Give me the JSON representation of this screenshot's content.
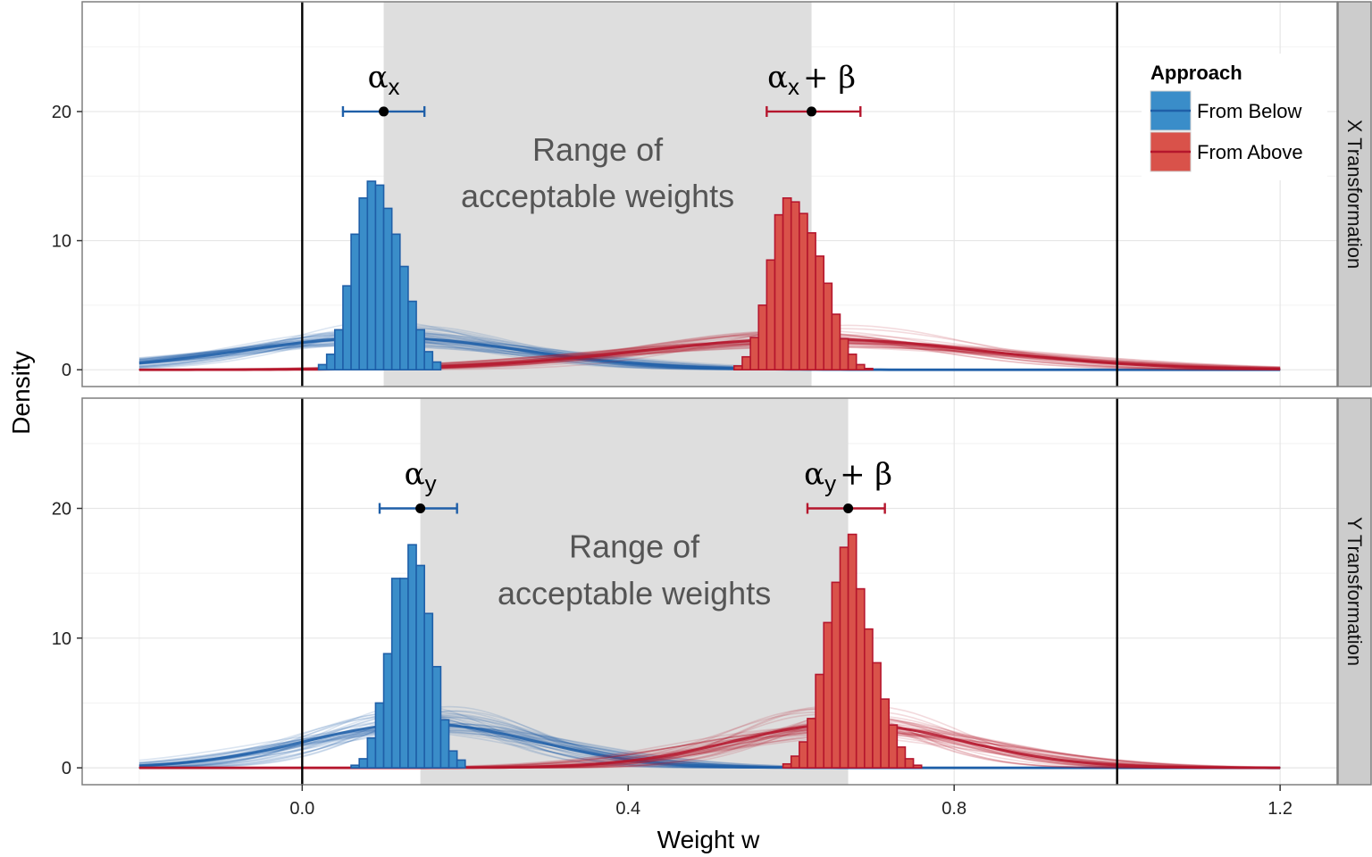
{
  "chart_data": {
    "type": "histogram-density",
    "xlabel": "Weight w",
    "ylabel": "Density",
    "x_ticks": [
      "0.0",
      "0.4",
      "0.8",
      "1.2"
    ],
    "y_ticks": [
      "0",
      "10",
      "20"
    ],
    "xlim": [
      -0.27,
      1.27
    ],
    "ylim": [
      -1.3,
      28.5
    ],
    "vlines": [
      0.0,
      1.0
    ],
    "grid": true,
    "legend": {
      "title": "Approach",
      "placement": "top-right",
      "entries": [
        {
          "label": "From Below",
          "fill": "#3a8dc9",
          "line": "#1f5fa8"
        },
        {
          "label": "From Above",
          "fill": "#d9524a",
          "line": "#b5162d"
        }
      ]
    },
    "range_text": [
      "Range of",
      "acceptable weights"
    ],
    "panels": [
      {
        "strip": "X Transformation",
        "shade_range": [
          0.1,
          0.625
        ],
        "below": {
          "label": "α",
          "label_sub": "x",
          "estimate": 0.1,
          "ci": [
            0.05,
            0.15
          ],
          "ci_y": 20,
          "hist_start": 0.02,
          "bin_width": 0.01,
          "counts": [
            0.4,
            1.2,
            3.1,
            6.5,
            10.5,
            13.3,
            14.6,
            14.3,
            12.5,
            10.5,
            8.0,
            5.3,
            3.1,
            1.4,
            0.6
          ],
          "density": {
            "mean": 0.1,
            "sd": 0.17,
            "peak": 2.5
          }
        },
        "above": {
          "label": "α",
          "label_sub": "x",
          "label_suffix": "+ β",
          "estimate": 0.625,
          "ci": [
            0.57,
            0.685
          ],
          "ci_y": 20,
          "hist_start": 0.53,
          "bin_width": 0.01,
          "counts": [
            0.3,
            1.0,
            2.5,
            5.0,
            8.5,
            12.0,
            13.3,
            13.0,
            12.1,
            10.6,
            8.8,
            6.7,
            4.3,
            2.4,
            1.2,
            0.4,
            0.1
          ],
          "density": {
            "mean": 0.625,
            "sd": 0.21,
            "peak": 2.4
          }
        }
      },
      {
        "strip": "Y Transformation",
        "shade_range": [
          0.145,
          0.67
        ],
        "below": {
          "label": "α",
          "label_sub": "y",
          "estimate": 0.145,
          "ci": [
            0.095,
            0.19
          ],
          "ci_y": 20,
          "hist_start": 0.06,
          "bin_width": 0.01,
          "counts": [
            0.2,
            0.7,
            2.3,
            5.0,
            8.8,
            14.6,
            14.6,
            17.2,
            15.6,
            11.9,
            7.8,
            3.7,
            1.3,
            0.6
          ],
          "density": {
            "mean": 0.145,
            "sd": 0.14,
            "peak": 3.4
          }
        },
        "above": {
          "label": "α",
          "label_sub": "y",
          "label_suffix": "+ β",
          "estimate": 0.67,
          "ci": [
            0.62,
            0.715
          ],
          "ci_y": 20,
          "hist_start": 0.59,
          "bin_width": 0.01,
          "counts": [
            0.3,
            0.9,
            2.0,
            3.8,
            7.2,
            11.2,
            14.3,
            17.0,
            18.0,
            13.8,
            10.7,
            8.1,
            5.3,
            3.3,
            1.6,
            0.7,
            0.2
          ],
          "density": {
            "mean": 0.67,
            "sd": 0.14,
            "peak": 3.4
          }
        }
      }
    ]
  }
}
